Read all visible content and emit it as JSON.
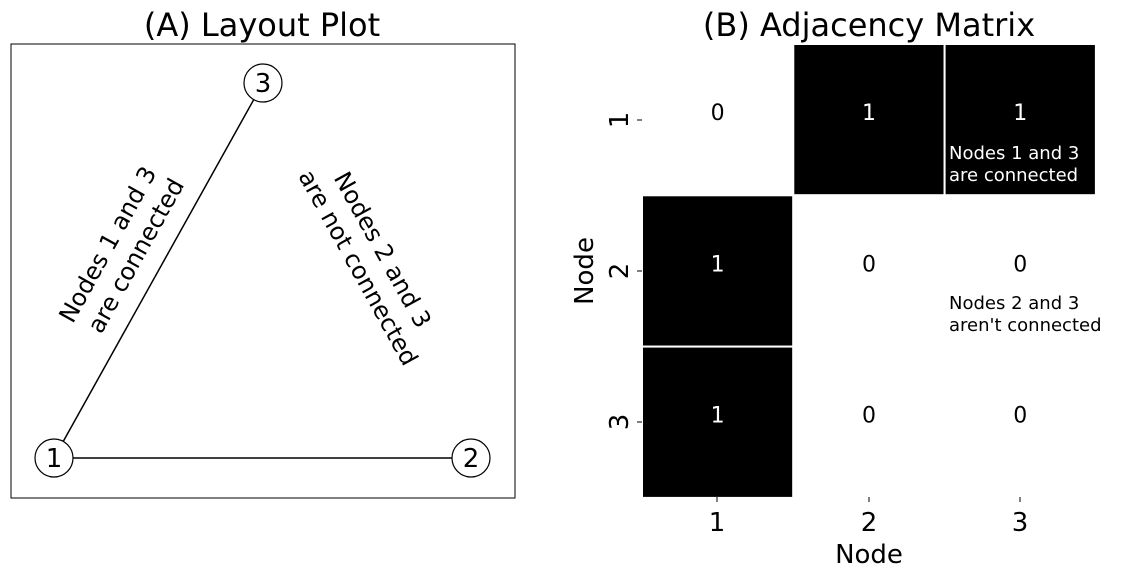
{
  "layout_plot": {
    "title": "(A) Layout Plot",
    "nodes": [
      "1",
      "2",
      "3"
    ],
    "edges": [
      [
        "1",
        "3"
      ],
      [
        "1",
        "2"
      ]
    ],
    "annotation_connected": [
      "Nodes 1 and 3",
      "are connected"
    ],
    "annotation_not_connected": [
      "Nodes 2 and 3",
      "are not connected"
    ]
  },
  "adjacency_matrix": {
    "title": "(B) Adjacency Matrix",
    "row_labels": [
      "1",
      "2",
      "3"
    ],
    "col_labels": [
      "1",
      "2",
      "3"
    ],
    "values": [
      [
        0,
        1,
        1
      ],
      [
        1,
        0,
        0
      ],
      [
        1,
        0,
        0
      ]
    ],
    "xlabel": "Node",
    "ylabel": "Node",
    "annotation_connected": [
      "Nodes 1 and 3",
      "are connected"
    ],
    "annotation_not_connected": [
      "Nodes 2 and 3",
      "aren't connected"
    ],
    "colors": {
      "one": "#000000",
      "zero": "#ffffff"
    }
  }
}
